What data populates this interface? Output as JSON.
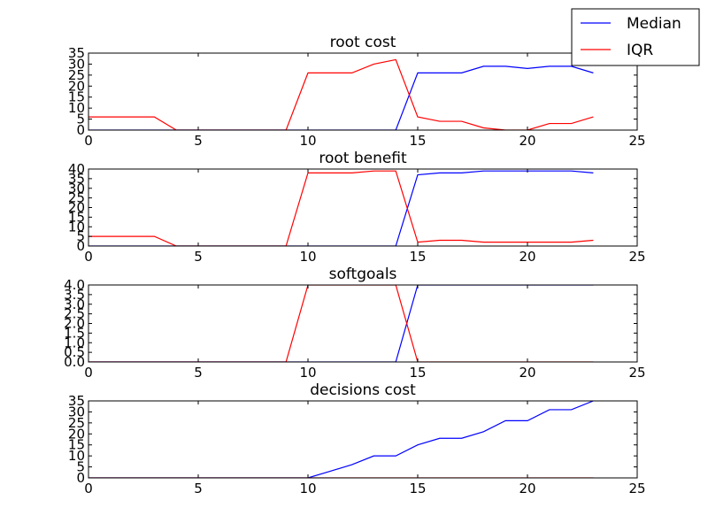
{
  "chart_data": [
    {
      "type": "line",
      "title": "root cost",
      "xlabel": "",
      "ylabel": "",
      "xlim": [
        0,
        25
      ],
      "ylim": [
        0,
        35
      ],
      "xticks": [
        "0",
        "5",
        "10",
        "15",
        "20",
        "25"
      ],
      "yticks": [
        "0",
        "5",
        "10",
        "15",
        "20",
        "25",
        "30",
        "35"
      ],
      "x": [
        0,
        1,
        2,
        3,
        4,
        5,
        6,
        7,
        8,
        9,
        10,
        11,
        12,
        13,
        14,
        15,
        16,
        17,
        18,
        19,
        20,
        21,
        22,
        23
      ],
      "series": [
        {
          "name": "Median",
          "color": "#0000ff",
          "values": [
            0,
            0,
            0,
            0,
            0,
            0,
            0,
            0,
            0,
            0,
            0,
            0,
            0,
            0,
            0,
            26,
            26,
            26,
            29,
            29,
            28,
            29,
            29,
            26
          ]
        },
        {
          "name": "IQR",
          "color": "#ff0000",
          "values": [
            6,
            6,
            6,
            6,
            0,
            0,
            0,
            0,
            0,
            0,
            26,
            26,
            26,
            30,
            32,
            6,
            4,
            4,
            1,
            0,
            0,
            3,
            3,
            6
          ]
        }
      ],
      "grid": false
    },
    {
      "type": "line",
      "title": "root benefit",
      "xlabel": "",
      "ylabel": "",
      "xlim": [
        0,
        25
      ],
      "ylim": [
        0,
        40
      ],
      "xticks": [
        "0",
        "5",
        "10",
        "15",
        "20",
        "25"
      ],
      "yticks": [
        "0",
        "5",
        "10",
        "15",
        "20",
        "25",
        "30",
        "35",
        "40"
      ],
      "x": [
        0,
        1,
        2,
        3,
        4,
        5,
        6,
        7,
        8,
        9,
        10,
        11,
        12,
        13,
        14,
        15,
        16,
        17,
        18,
        19,
        20,
        21,
        22,
        23
      ],
      "series": [
        {
          "name": "Median",
          "color": "#0000ff",
          "values": [
            0,
            0,
            0,
            0,
            0,
            0,
            0,
            0,
            0,
            0,
            0,
            0,
            0,
            0,
            0,
            37,
            38,
            38,
            39,
            39,
            39,
            39,
            39,
            38
          ]
        },
        {
          "name": "IQR",
          "color": "#ff0000",
          "values": [
            5,
            5,
            5,
            5,
            0,
            0,
            0,
            0,
            0,
            0,
            38,
            38,
            38,
            39,
            39,
            2,
            3,
            3,
            2,
            2,
            2,
            2,
            2,
            3
          ]
        }
      ],
      "grid": false
    },
    {
      "type": "line",
      "title": "softgoals",
      "xlabel": "",
      "ylabel": "",
      "xlim": [
        0,
        25
      ],
      "ylim": [
        0,
        4
      ],
      "xticks": [
        "0",
        "5",
        "10",
        "15",
        "20",
        "25"
      ],
      "yticks": [
        "0.0",
        "0.5",
        "1.0",
        "1.5",
        "2.0",
        "2.5",
        "3.0",
        "3.5",
        "4.0"
      ],
      "x": [
        0,
        1,
        2,
        3,
        4,
        5,
        6,
        7,
        8,
        9,
        10,
        11,
        12,
        13,
        14,
        15,
        16,
        17,
        18,
        19,
        20,
        21,
        22,
        23
      ],
      "series": [
        {
          "name": "Median",
          "color": "#0000ff",
          "values": [
            0,
            0,
            0,
            0,
            0,
            0,
            0,
            0,
            0,
            0,
            0,
            0,
            0,
            0,
            0,
            4,
            4,
            4,
            4,
            4,
            4,
            4,
            4,
            4
          ]
        },
        {
          "name": "IQR",
          "color": "#ff0000",
          "values": [
            0,
            0,
            0,
            0,
            0,
            0,
            0,
            0,
            0,
            0,
            4,
            4,
            4,
            4,
            4,
            0,
            0,
            0,
            0,
            0,
            0,
            0,
            0,
            0
          ]
        }
      ],
      "grid": false
    },
    {
      "type": "line",
      "title": "decisions cost",
      "xlabel": "",
      "ylabel": "",
      "xlim": [
        0,
        25
      ],
      "ylim": [
        0,
        35
      ],
      "xticks": [
        "0",
        "5",
        "10",
        "15",
        "20",
        "25"
      ],
      "yticks": [
        "0",
        "5",
        "10",
        "15",
        "20",
        "25",
        "30",
        "35"
      ],
      "x": [
        0,
        1,
        2,
        3,
        4,
        5,
        6,
        7,
        8,
        9,
        10,
        11,
        12,
        13,
        14,
        15,
        16,
        17,
        18,
        19,
        20,
        21,
        22,
        23
      ],
      "series": [
        {
          "name": "Median",
          "color": "#0000ff",
          "values": [
            0,
            0,
            0,
            0,
            0,
            0,
            0,
            0,
            0,
            0,
            0,
            3,
            6,
            10,
            10,
            15,
            18,
            18,
            21,
            26,
            26,
            31,
            31,
            35
          ]
        },
        {
          "name": "IQR",
          "color": "#ff0000",
          "values": [
            0,
            0,
            0,
            0,
            0,
            0,
            0,
            0,
            0,
            0,
            0,
            0,
            0,
            0,
            0,
            0,
            0,
            0,
            0,
            0,
            0,
            0,
            0,
            0
          ]
        }
      ],
      "grid": false
    }
  ],
  "legend": {
    "placement": "top-right",
    "entries": [
      {
        "label": "Median",
        "color": "#0000ff"
      },
      {
        "label": "IQR",
        "color": "#ff0000"
      }
    ]
  }
}
